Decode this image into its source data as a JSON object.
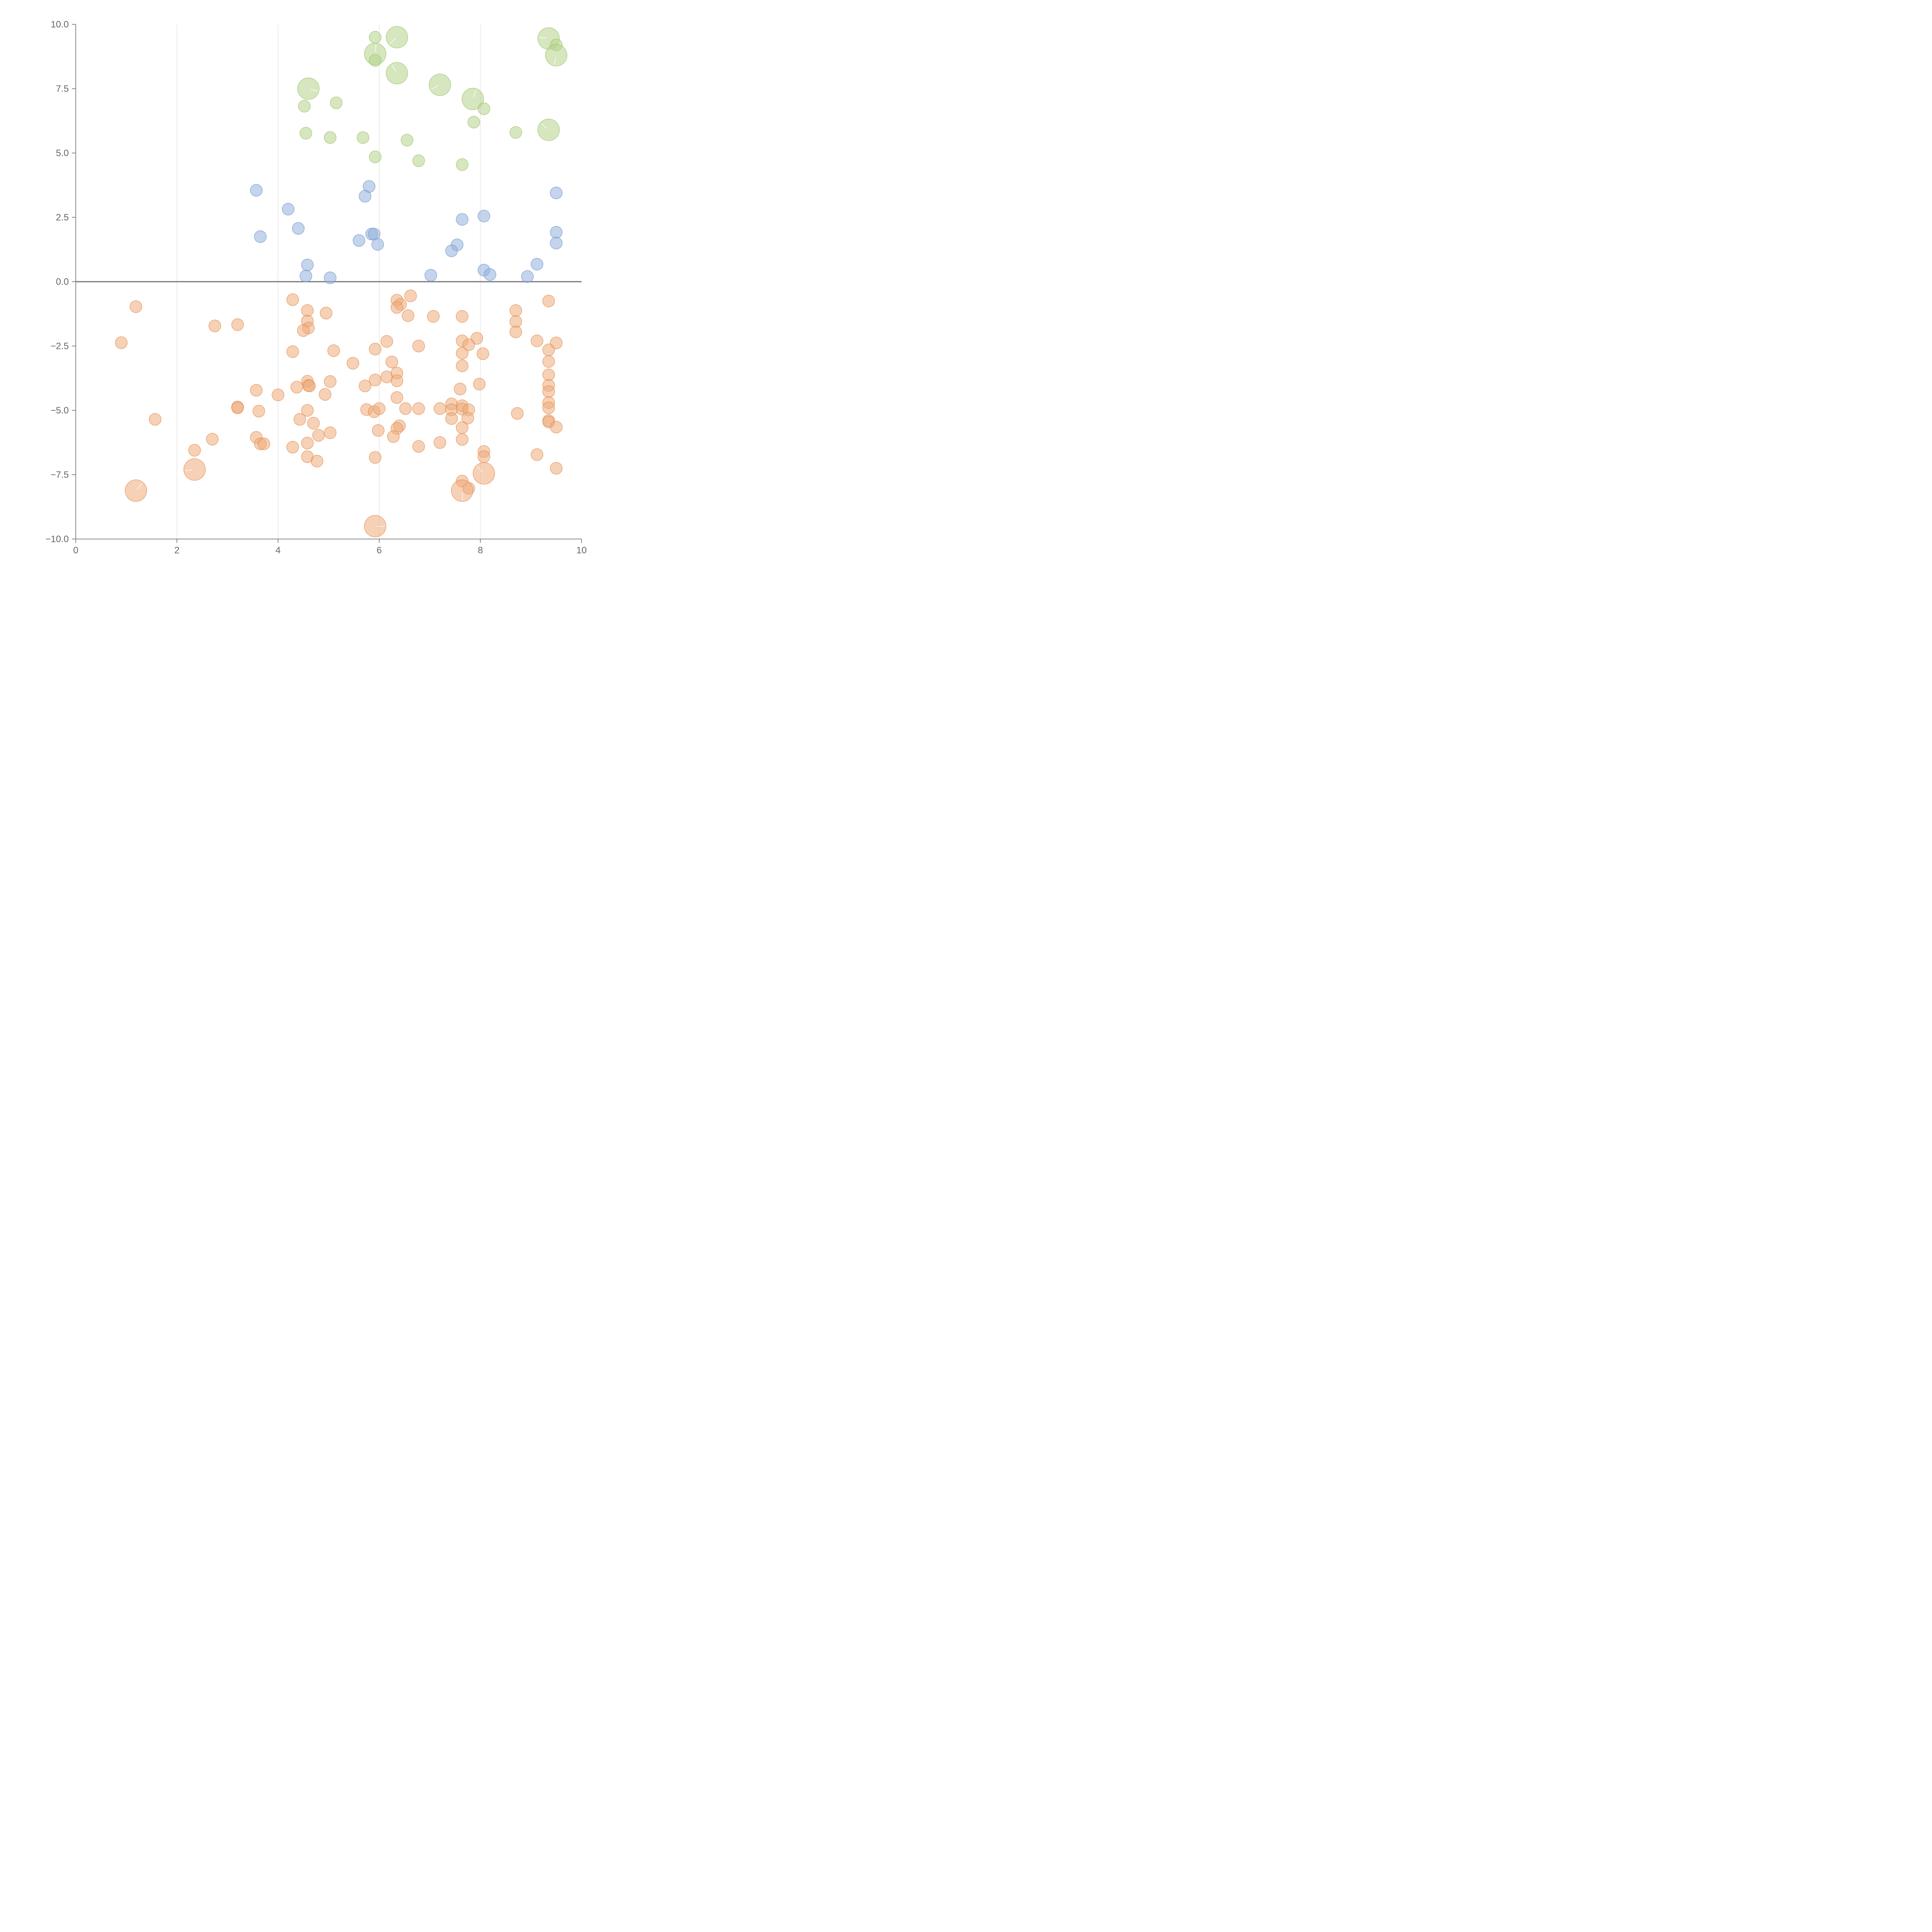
{
  "chart_data": {
    "type": "scatter",
    "title": "",
    "xlabel": "",
    "ylabel": "",
    "xlim": [
      0,
      10
    ],
    "ylim": [
      -10,
      10
    ],
    "x_ticks": [
      0,
      2,
      4,
      6,
      8,
      10
    ],
    "y_ticks": [
      -10,
      -7.5,
      -5,
      -2.5,
      0,
      2.5,
      5,
      7.5,
      10
    ],
    "x_tick_labels": [
      "0",
      "2",
      "4",
      "6",
      "8",
      "10"
    ],
    "y_tick_labels": [
      "−10.0",
      "−7.5",
      "−5.0",
      "−2.5",
      "0.0",
      "2.5",
      "5.0",
      "7.5",
      "10.0"
    ],
    "grid": "vertical",
    "legend": "none",
    "series": [
      {
        "name": "green",
        "color": "#b5d38b",
        "stroke": "#9cc06a",
        "points": [
          [
            5.92,
            9.5,
            0.5
          ],
          [
            6.35,
            9.5,
            1.0
          ],
          [
            5.92,
            8.85,
            1.0
          ],
          [
            5.92,
            8.6,
            0.5
          ],
          [
            9.35,
            9.45,
            1.0
          ],
          [
            9.5,
            9.2,
            0.5
          ],
          [
            9.5,
            8.8,
            1.0
          ],
          [
            6.35,
            8.1,
            1.0
          ],
          [
            4.6,
            7.5,
            1.0
          ],
          [
            7.2,
            7.65,
            1.0
          ],
          [
            7.85,
            7.1,
            1.0
          ],
          [
            4.52,
            6.82,
            0.5
          ],
          [
            5.15,
            6.95,
            0.5
          ],
          [
            8.07,
            6.72,
            0.5
          ],
          [
            7.87,
            6.2,
            0.5
          ],
          [
            4.55,
            5.77,
            0.5
          ],
          [
            5.03,
            5.6,
            0.5
          ],
          [
            5.68,
            5.6,
            0.5
          ],
          [
            6.55,
            5.5,
            0.5
          ],
          [
            8.7,
            5.8,
            0.5
          ],
          [
            9.35,
            5.9,
            1.0
          ],
          [
            5.92,
            4.85,
            0.5
          ],
          [
            6.78,
            4.7,
            0.5
          ],
          [
            7.64,
            4.55,
            0.5
          ]
        ]
      },
      {
        "name": "blue",
        "color": "#92b0dc",
        "stroke": "#6f95cc",
        "points": [
          [
            3.57,
            3.55,
            0.5
          ],
          [
            5.8,
            3.7,
            0.5
          ],
          [
            5.72,
            3.32,
            0.5
          ],
          [
            9.5,
            3.45,
            0.5
          ],
          [
            4.2,
            2.82,
            0.5
          ],
          [
            4.4,
            2.07,
            0.5
          ],
          [
            3.65,
            1.75,
            0.5
          ],
          [
            5.6,
            1.6,
            0.5
          ],
          [
            5.85,
            1.85,
            0.5
          ],
          [
            5.9,
            1.85,
            0.5
          ],
          [
            5.97,
            1.45,
            0.5
          ],
          [
            7.64,
            2.42,
            0.5
          ],
          [
            8.07,
            2.55,
            0.5
          ],
          [
            9.5,
            1.92,
            0.5
          ],
          [
            9.5,
            1.5,
            0.5
          ],
          [
            7.54,
            1.43,
            0.5
          ],
          [
            7.43,
            1.2,
            0.5
          ],
          [
            4.58,
            0.65,
            0.5
          ],
          [
            4.55,
            0.22,
            0.5
          ],
          [
            5.03,
            0.15,
            0.5
          ],
          [
            7.02,
            0.25,
            0.5
          ],
          [
            8.07,
            0.45,
            0.5
          ],
          [
            8.19,
            0.28,
            0.5
          ],
          [
            8.93,
            0.2,
            0.5
          ],
          [
            9.12,
            0.68,
            0.5
          ]
        ]
      },
      {
        "name": "orange",
        "color": "#eeab7a",
        "stroke": "#df8c4e",
        "points": [
          [
            1.19,
            -0.97,
            0.5
          ],
          [
            0.9,
            -2.37,
            0.5
          ],
          [
            2.75,
            -1.72,
            0.5
          ],
          [
            3.2,
            -1.67,
            0.5
          ],
          [
            4.29,
            -0.7,
            0.5
          ],
          [
            4.58,
            -1.12,
            0.5
          ],
          [
            4.95,
            -1.22,
            0.5
          ],
          [
            4.58,
            -1.53,
            0.5
          ],
          [
            4.6,
            -1.8,
            0.5
          ],
          [
            4.5,
            -1.9,
            0.5
          ],
          [
            6.35,
            -0.72,
            0.5
          ],
          [
            6.62,
            -0.55,
            0.5
          ],
          [
            6.42,
            -0.88,
            0.5
          ],
          [
            6.35,
            -1.0,
            0.5
          ],
          [
            6.57,
            -1.32,
            0.5
          ],
          [
            7.07,
            -1.35,
            0.5
          ],
          [
            7.64,
            -1.35,
            0.5
          ],
          [
            8.7,
            -1.12,
            0.5
          ],
          [
            9.35,
            -0.75,
            0.5
          ],
          [
            8.7,
            -1.55,
            0.5
          ],
          [
            8.7,
            -1.95,
            0.5
          ],
          [
            4.29,
            -2.72,
            0.5
          ],
          [
            5.1,
            -2.68,
            0.5
          ],
          [
            5.48,
            -3.17,
            0.5
          ],
          [
            5.92,
            -2.62,
            0.5
          ],
          [
            6.15,
            -2.32,
            0.5
          ],
          [
            6.78,
            -2.5,
            0.5
          ],
          [
            6.25,
            -3.12,
            0.5
          ],
          [
            7.64,
            -2.3,
            0.5
          ],
          [
            7.93,
            -2.2,
            0.5
          ],
          [
            7.77,
            -2.45,
            0.5
          ],
          [
            7.64,
            -2.78,
            0.5
          ],
          [
            8.05,
            -2.8,
            0.5
          ],
          [
            7.64,
            -3.27,
            0.5
          ],
          [
            9.12,
            -2.3,
            0.5
          ],
          [
            9.5,
            -2.38,
            0.5
          ],
          [
            9.35,
            -2.65,
            0.5
          ],
          [
            9.35,
            -3.1,
            0.5
          ],
          [
            9.35,
            -3.62,
            0.5
          ],
          [
            9.35,
            -4.03,
            0.5
          ],
          [
            9.35,
            -4.27,
            0.5
          ],
          [
            9.35,
            -4.7,
            0.5
          ],
          [
            9.35,
            -4.9,
            0.5
          ],
          [
            9.35,
            -5.4,
            0.5
          ],
          [
            9.35,
            -5.45,
            0.5
          ],
          [
            9.5,
            -5.65,
            0.5
          ],
          [
            9.12,
            -6.72,
            0.5
          ],
          [
            9.5,
            -7.25,
            0.5
          ],
          [
            3.57,
            -4.22,
            0.5
          ],
          [
            4.0,
            -4.4,
            0.5
          ],
          [
            4.37,
            -4.1,
            0.5
          ],
          [
            4.58,
            -3.87,
            0.5
          ],
          [
            4.6,
            -4.03,
            0.5
          ],
          [
            4.62,
            -4.05,
            0.5
          ],
          [
            5.03,
            -3.88,
            0.5
          ],
          [
            4.93,
            -4.38,
            0.5
          ],
          [
            5.72,
            -4.05,
            0.5
          ],
          [
            5.92,
            -3.82,
            0.5
          ],
          [
            6.15,
            -3.7,
            0.5
          ],
          [
            6.35,
            -3.55,
            0.5
          ],
          [
            6.35,
            -3.85,
            0.5
          ],
          [
            6.35,
            -4.5,
            0.5
          ],
          [
            7.6,
            -4.17,
            0.5
          ],
          [
            7.98,
            -3.98,
            0.5
          ],
          [
            3.2,
            -4.87,
            0.5
          ],
          [
            3.2,
            -4.9,
            0.5
          ],
          [
            1.57,
            -5.35,
            0.5
          ],
          [
            3.62,
            -5.03,
            0.5
          ],
          [
            4.58,
            -5.0,
            0.5
          ],
          [
            4.43,
            -5.35,
            0.5
          ],
          [
            4.7,
            -5.5,
            0.5
          ],
          [
            5.75,
            -4.97,
            0.5
          ],
          [
            5.9,
            -5.05,
            0.5
          ],
          [
            6.0,
            -4.93,
            0.5
          ],
          [
            6.52,
            -4.93,
            0.5
          ],
          [
            6.78,
            -4.93,
            0.5
          ],
          [
            7.2,
            -4.93,
            0.5
          ],
          [
            7.43,
            -4.75,
            0.5
          ],
          [
            7.43,
            -4.98,
            0.5
          ],
          [
            7.64,
            -4.82,
            0.5
          ],
          [
            7.64,
            -4.95,
            0.5
          ],
          [
            7.77,
            -4.98,
            0.5
          ],
          [
            7.43,
            -5.32,
            0.5
          ],
          [
            7.75,
            -5.3,
            0.5
          ],
          [
            8.73,
            -5.12,
            0.5
          ],
          [
            6.4,
            -5.6,
            0.5
          ],
          [
            6.35,
            -5.7,
            0.5
          ],
          [
            5.98,
            -5.78,
            0.5
          ],
          [
            6.28,
            -6.02,
            0.5
          ],
          [
            7.64,
            -5.67,
            0.5
          ],
          [
            7.64,
            -6.13,
            0.5
          ],
          [
            2.7,
            -6.12,
            0.5
          ],
          [
            2.35,
            -6.55,
            0.5
          ],
          [
            3.57,
            -6.05,
            0.5
          ],
          [
            3.65,
            -6.3,
            0.5
          ],
          [
            3.72,
            -6.3,
            0.5
          ],
          [
            4.29,
            -6.43,
            0.5
          ],
          [
            4.58,
            -6.27,
            0.5
          ],
          [
            4.8,
            -5.97,
            0.5
          ],
          [
            5.03,
            -5.87,
            0.5
          ],
          [
            4.58,
            -6.8,
            0.5
          ],
          [
            4.77,
            -6.97,
            0.5
          ],
          [
            5.92,
            -6.83,
            0.5
          ],
          [
            6.78,
            -6.4,
            0.5
          ],
          [
            7.2,
            -6.25,
            0.5
          ],
          [
            8.07,
            -6.6,
            0.5
          ],
          [
            8.07,
            -6.8,
            0.5
          ],
          [
            7.64,
            -7.75,
            0.5
          ],
          [
            7.77,
            -8.03,
            0.5
          ],
          [
            2.35,
            -7.3,
            1.0
          ],
          [
            1.19,
            -8.12,
            1.0
          ],
          [
            7.64,
            -8.12,
            1.0
          ],
          [
            8.07,
            -7.45,
            1.0
          ],
          [
            5.92,
            -9.5,
            1.0
          ]
        ]
      }
    ]
  }
}
